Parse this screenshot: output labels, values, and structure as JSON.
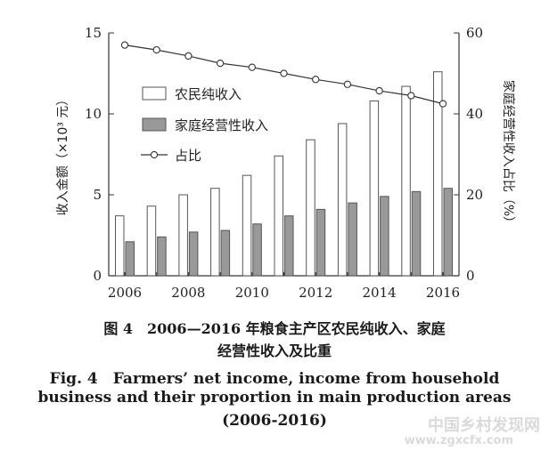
{
  "chart_data": {
    "type": "bar",
    "x": [
      2006,
      2007,
      2008,
      2009,
      2010,
      2011,
      2012,
      2013,
      2014,
      2015,
      2016
    ],
    "x_tick_labels": [
      "2006",
      "2008",
      "2010",
      "2012",
      "2014",
      "2016"
    ],
    "series": [
      {
        "name": "农民纯收入",
        "type": "bar",
        "axis": "left",
        "color": "#ffffff",
        "values": [
          3.7,
          4.3,
          5.0,
          5.4,
          6.2,
          7.4,
          8.4,
          9.4,
          10.8,
          11.7,
          12.6
        ]
      },
      {
        "name": "家庭经营性收入",
        "type": "bar",
        "axis": "left",
        "color": "#999999",
        "values": [
          2.1,
          2.4,
          2.7,
          2.8,
          3.2,
          3.7,
          4.1,
          4.5,
          4.9,
          5.2,
          5.4
        ]
      },
      {
        "name": "占比",
        "type": "line",
        "axis": "right",
        "marker": "circle",
        "values": [
          57.0,
          55.8,
          54.3,
          52.5,
          51.5,
          50.0,
          48.5,
          47.3,
          45.7,
          44.5,
          42.5
        ]
      }
    ],
    "left_axis": {
      "label": "收入金额（×10³ 元）",
      "ylim": [
        0,
        15
      ],
      "ticks": [
        "0",
        "5",
        "10",
        "15"
      ]
    },
    "right_axis": {
      "label": "家庭经营性收入占比（%）",
      "ylim": [
        0,
        60
      ],
      "ticks": [
        "0",
        "20",
        "40",
        "60"
      ]
    },
    "legend": {
      "placement": "top-left"
    },
    "grid": false
  },
  "caption": {
    "cn_line1": "图 4　2006—2016 年粮食主产区农民纯收入、家庭",
    "cn_line2": "经营性收入及比重",
    "en_line1": "Fig. 4　Farmers’ net income, income from household",
    "en_line2": "business and their proportion in main production areas",
    "en_line3": "(2006-2016)"
  },
  "watermark": {
    "text": "中国乡村发现网",
    "url": "www.zgxcfx.com"
  }
}
